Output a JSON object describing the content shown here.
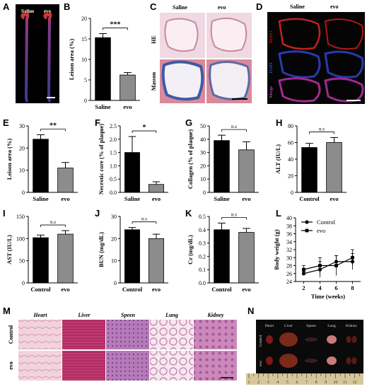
{
  "panel_labels": [
    "A",
    "B",
    "C",
    "D",
    "E",
    "F",
    "G",
    "H",
    "I",
    "J",
    "K",
    "L",
    "M",
    "N"
  ],
  "panelA": {
    "labels": [
      "Saline",
      "evo"
    ]
  },
  "panelC": {
    "col_labels": [
      "Saline",
      "evo"
    ],
    "row_labels": [
      "HE",
      "Masson"
    ]
  },
  "panelD": {
    "col_labels": [
      "Saline",
      "evo"
    ],
    "row_labels": [
      "Myh11",
      "DAPI",
      "Merge"
    ]
  },
  "panelM": {
    "col_labels": [
      "Heart",
      "Liver",
      "Speen",
      "Lung",
      "Kidney"
    ],
    "row_labels": [
      "Control",
      "evo"
    ]
  },
  "panelN": {
    "col_labels": [
      "Heart",
      "Liver",
      "Speen",
      "Lung",
      "Kidney"
    ],
    "row_labels": [
      "Control",
      "evo"
    ]
  },
  "chart_data": [
    {
      "id": "B",
      "type": "bar",
      "categories": [
        "Saline",
        "evo"
      ],
      "values": [
        15.3,
        6.2
      ],
      "errors": [
        1.0,
        0.6
      ],
      "ylabel": "Leison area (%)",
      "ylim": [
        0,
        20
      ],
      "yticks": [
        0,
        5,
        10,
        15,
        20
      ],
      "significance": "***",
      "colors": [
        "#000000",
        "#8c8c8c"
      ]
    },
    {
      "id": "E",
      "type": "bar",
      "categories": [
        "Saline",
        "evo"
      ],
      "values": [
        24,
        11
      ],
      "errors": [
        2,
        2.5
      ],
      "ylabel": "Leison area (%)",
      "ylim": [
        0,
        30
      ],
      "yticks": [
        0,
        10,
        20,
        30
      ],
      "significance": "**",
      "colors": [
        "#000000",
        "#8c8c8c"
      ]
    },
    {
      "id": "F",
      "type": "bar",
      "categories": [
        "Saline",
        "evo"
      ],
      "values": [
        1.5,
        0.3
      ],
      "errors": [
        0.6,
        0.1
      ],
      "ylabel": "Necrotic core (% of plaque)",
      "ylim": [
        0,
        2.5
      ],
      "yticks": [
        0.0,
        0.5,
        1.0,
        1.5,
        2.0,
        2.5
      ],
      "significance": "*",
      "colors": [
        "#000000",
        "#8c8c8c"
      ]
    },
    {
      "id": "G",
      "type": "bar",
      "categories": [
        "Saline",
        "evo"
      ],
      "values": [
        39,
        32
      ],
      "errors": [
        4,
        6
      ],
      "ylabel": "Collagen (% of plaque)",
      "ylim": [
        0,
        50
      ],
      "yticks": [
        0,
        10,
        20,
        30,
        40,
        50
      ],
      "significance": "n.s",
      "colors": [
        "#000000",
        "#8c8c8c"
      ]
    },
    {
      "id": "H",
      "type": "bar",
      "categories": [
        "Control",
        "evo"
      ],
      "values": [
        54,
        60
      ],
      "errors": [
        5,
        6
      ],
      "ylabel": "ALT (IU/L)",
      "ylim": [
        0,
        80
      ],
      "yticks": [
        0,
        20,
        40,
        60,
        80
      ],
      "significance": "n.s",
      "colors": [
        "#000000",
        "#8c8c8c"
      ]
    },
    {
      "id": "I",
      "type": "bar",
      "categories": [
        "Control",
        "evo"
      ],
      "values": [
        102,
        110
      ],
      "errors": [
        6,
        8
      ],
      "ylabel": "AST (IU/L)",
      "ylim": [
        0,
        150
      ],
      "yticks": [
        0,
        50,
        100,
        150
      ],
      "significance": "n.s",
      "colors": [
        "#000000",
        "#8c8c8c"
      ]
    },
    {
      "id": "J",
      "type": "bar",
      "categories": [
        "Control",
        "evo"
      ],
      "values": [
        24,
        20
      ],
      "errors": [
        1,
        2
      ],
      "ylabel": "BUN (mg/dL)",
      "ylim": [
        0,
        30
      ],
      "yticks": [
        0,
        10,
        20,
        30
      ],
      "significance": "n.s",
      "colors": [
        "#000000",
        "#8c8c8c"
      ]
    },
    {
      "id": "K",
      "type": "bar",
      "categories": [
        "Control",
        "evo"
      ],
      "values": [
        0.4,
        0.38
      ],
      "errors": [
        0.05,
        0.03
      ],
      "ylabel": "Cr (mg/dL)",
      "ylim": [
        0,
        0.5
      ],
      "yticks": [
        0.0,
        0.1,
        0.2,
        0.3,
        0.4,
        0.5
      ],
      "significance": "n.s",
      "colors": [
        "#000000",
        "#8c8c8c"
      ]
    },
    {
      "id": "L",
      "type": "line",
      "x": [
        2,
        4,
        6,
        8
      ],
      "xlabel": "Time (weeks)",
      "ylabel": "Body weight (g)",
      "xlim": [
        1,
        9
      ],
      "xticks": [
        2,
        4,
        6,
        8
      ],
      "ylim": [
        24,
        40
      ],
      "yticks": [
        24,
        26,
        28,
        30,
        32,
        34,
        36,
        38,
        40
      ],
      "legend": "top-left",
      "series": [
        {
          "name": "Control",
          "marker": "circle",
          "values": [
            26,
            27,
            29,
            29
          ],
          "errors": [
            0.5,
            2,
            1.5,
            2
          ]
        },
        {
          "name": "evo",
          "marker": "square",
          "values": [
            27,
            28,
            28,
            30
          ],
          "errors": [
            1,
            2,
            2.5,
            2
          ]
        }
      ]
    }
  ]
}
